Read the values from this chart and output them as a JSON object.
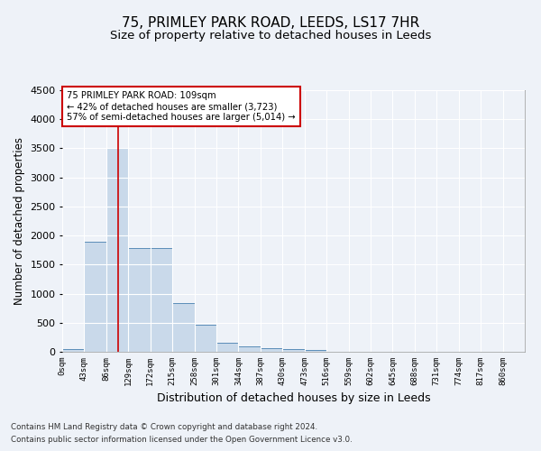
{
  "title": "75, PRIMLEY PARK ROAD, LEEDS, LS17 7HR",
  "subtitle": "Size of property relative to detached houses in Leeds",
  "xlabel": "Distribution of detached houses by size in Leeds",
  "ylabel": "Number of detached properties",
  "footer1": "Contains HM Land Registry data © Crown copyright and database right 2024.",
  "footer2": "Contains public sector information licensed under the Open Government Licence v3.0.",
  "annotation_line1": "75 PRIMLEY PARK ROAD: 109sqm",
  "annotation_line2": "← 42% of detached houses are smaller (3,723)",
  "annotation_line3": "57% of semi-detached houses are larger (5,014) →",
  "bin_width": 43,
  "bin_starts": [
    0,
    43,
    86,
    129,
    172,
    215,
    258,
    301,
    344,
    387,
    430,
    473,
    516,
    559,
    602,
    645,
    688,
    731,
    774,
    817
  ],
  "bar_heights": [
    50,
    1900,
    3500,
    1780,
    1780,
    840,
    460,
    160,
    100,
    60,
    50,
    30,
    0,
    0,
    0,
    0,
    0,
    0,
    0,
    0
  ],
  "bar_color": "#c9d9ea",
  "bar_edge_color": "#5b8db8",
  "property_size": 109,
  "vline_color": "#cc0000",
  "annotation_box_color": "#cc0000",
  "ylim": [
    0,
    4500
  ],
  "xlim": [
    0,
    903
  ],
  "yticks": [
    0,
    500,
    1000,
    1500,
    2000,
    2500,
    3000,
    3500,
    4000,
    4500
  ],
  "bg_color": "#eef2f8",
  "plot_bg_color": "#eef2f8",
  "grid_color": "#ffffff",
  "title_fontsize": 11,
  "subtitle_fontsize": 9.5,
  "ylabel_fontsize": 8.5,
  "xlabel_fontsize": 9,
  "ytick_fontsize": 8,
  "xtick_fontsize": 6.5
}
